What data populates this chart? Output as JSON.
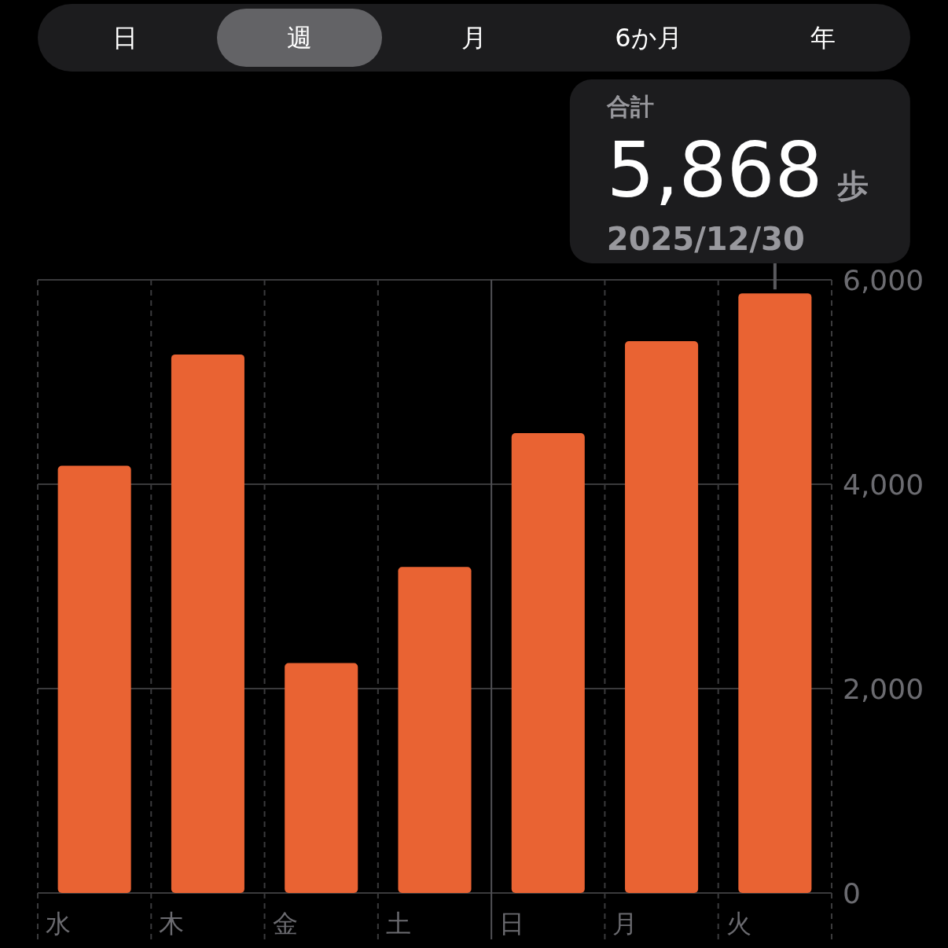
{
  "chart_data": {
    "type": "bar",
    "categories": [
      "水",
      "木",
      "金",
      "土",
      "日",
      "月",
      "火"
    ],
    "values": [
      4180,
      5270,
      2250,
      3190,
      4500,
      5400,
      5868
    ],
    "color": "#e96333",
    "ylim": [
      0,
      6000
    ],
    "yticks": [
      0,
      {
        "value": 2000,
        "label": "2,000"
      },
      {
        "value": 4000,
        "label": "4,000"
      },
      {
        "value": 6000,
        "label": "6,000"
      }
    ],
    "grid": true,
    "ref_lines": [
      {
        "axis": "x",
        "value": "日",
        "line_style": "solid"
      }
    ],
    "annotations": [
      "日",
      "週",
      "月",
      "6か月",
      "年",
      "合計",
      {
        "text": "5,868",
        "x": "火",
        "y": 5868
      },
      "歩",
      "2025/12/30"
    ]
  }
}
